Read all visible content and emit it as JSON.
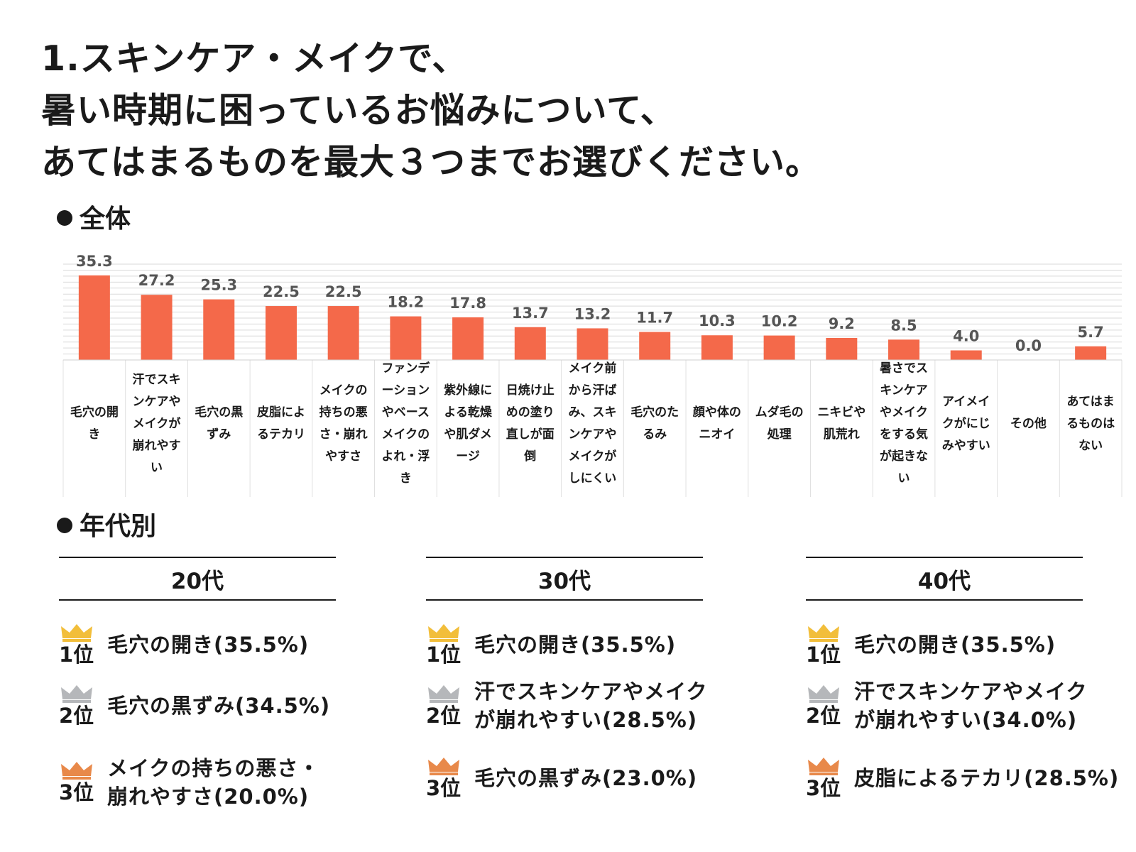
{
  "title": {
    "line1": "1.スキンケア・メイクで、",
    "line2": "暑い時期に困っているお悩みについて、",
    "line3": "あてはまるものを最大３つまでお選びください。"
  },
  "sections": {
    "overall": "全体",
    "by_age": "年代別"
  },
  "colors": {
    "bar": "#F4694A",
    "gold": "#F2BE3A",
    "silver": "#B5B7BA",
    "bronze": "#E8894A",
    "text": "#1a1a1a",
    "grid": "#d9d9d9"
  },
  "chart_data": {
    "type": "bar",
    "title": "全体",
    "categories": [
      "毛穴の開き",
      "汗でスキンケアやメイクが崩れやすい",
      "毛穴の黒ずみ",
      "皮脂によるテカリ",
      "メイクの持ちの悪さ・崩れやすさ",
      "ファンデーションやベースメイクのよれ・浮き",
      "紫外線による乾燥や肌ダメージ",
      "日焼け止めの塗り直しが面倒",
      "メイク前から汗ばみ、スキンケアやメイクがしにくい",
      "毛穴のたるみ",
      "顔や体のニオイ",
      "ムダ毛の処理",
      "ニキビや肌荒れ",
      "暑さでスキンケアやメイクをする気が起きない",
      "アイメイクがにじみやすい",
      "その他",
      "あてはまるものはない"
    ],
    "values": [
      35.3,
      27.2,
      25.3,
      22.5,
      22.5,
      18.2,
      17.8,
      13.7,
      13.2,
      11.7,
      10.3,
      10.2,
      9.2,
      8.5,
      4.0,
      0.0,
      5.7
    ],
    "value_labels": [
      "35.3",
      "27.2",
      "25.3",
      "22.5",
      "22.5",
      "18.2",
      "17.8",
      "13.7",
      "13.2",
      "11.7",
      "10.3",
      "10.2",
      "9.2",
      "8.5",
      "4.0",
      "0.0",
      "5.7"
    ],
    "ylim": [
      0,
      40
    ],
    "grid": true,
    "xlabel": "",
    "ylabel": ""
  },
  "age_groups": [
    {
      "label": "20代",
      "ranks": [
        {
          "rank": "1位",
          "text": "毛穴の開き(35.5%)"
        },
        {
          "rank": "2位",
          "text": "毛穴の黒ずみ(34.5%)"
        },
        {
          "rank": "3位",
          "text": "メイクの持ちの悪さ・崩れやすさ(20.0%)"
        }
      ]
    },
    {
      "label": "30代",
      "ranks": [
        {
          "rank": "1位",
          "text": "毛穴の開き(35.5%)"
        },
        {
          "rank": "2位",
          "text": "汗でスキンケアやメイクが崩れやすい(28.5%)"
        },
        {
          "rank": "3位",
          "text": "毛穴の黒ずみ(23.0%)"
        }
      ]
    },
    {
      "label": "40代",
      "ranks": [
        {
          "rank": "1位",
          "text": "毛穴の開き(35.5%)"
        },
        {
          "rank": "2位",
          "text": "汗でスキンケアやメイクが崩れやすい(34.0%)"
        },
        {
          "rank": "3位",
          "text": "皮脂によるテカリ(28.5%)"
        }
      ]
    }
  ]
}
